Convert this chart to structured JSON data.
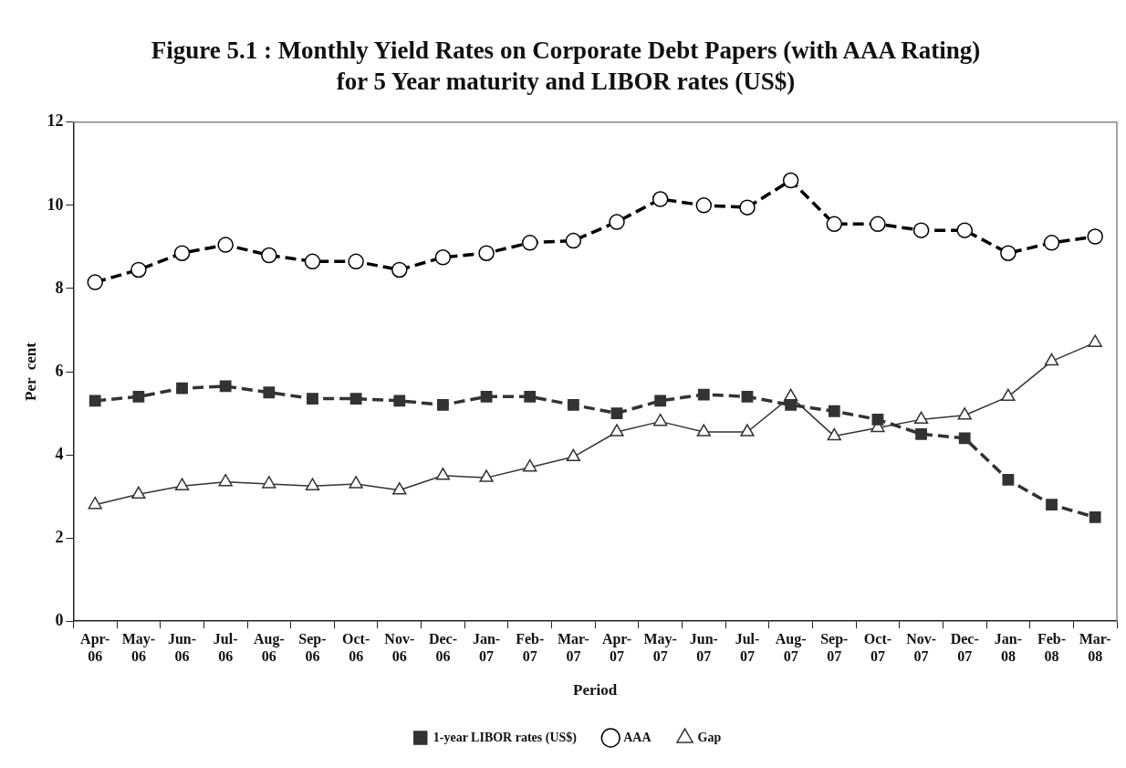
{
  "chart_data": {
    "type": "line",
    "title": "Figure 5.1 : Monthly Yield Rates on Corporate Debt Papers (with AAA Rating) for 5 Year maturity and LIBOR rates (US$)",
    "xlabel": "Period",
    "ylabel": "Per  cent",
    "categories": [
      "Apr-06",
      "May-06",
      "Jun-06",
      "Jul-06",
      "Aug-06",
      "Sep-06",
      "Oct-06",
      "Nov-06",
      "Dec-06",
      "Jan-07",
      "Feb-07",
      "Mar-07",
      "Apr-07",
      "May-07",
      "Jun-07",
      "Jul-07",
      "Aug-07",
      "Sep-07",
      "Oct-07",
      "Nov-07",
      "Dec-07",
      "Jan-08",
      "Feb-08",
      "Mar-08"
    ],
    "series": [
      {
        "name": "1-year LIBOR rates (US$)",
        "color": "#333333",
        "marker": "square",
        "line_style": "dashed",
        "values": [
          5.3,
          5.4,
          5.6,
          5.65,
          5.5,
          5.35,
          5.35,
          5.3,
          5.2,
          5.4,
          5.4,
          5.2,
          5.0,
          5.3,
          5.45,
          5.4,
          5.2,
          5.05,
          4.85,
          4.5,
          4.4,
          3.4,
          2.8,
          2.5
        ]
      },
      {
        "name": "AAA",
        "color": "#000000",
        "marker": "circle",
        "line_style": "dashed",
        "values": [
          8.15,
          8.45,
          8.85,
          9.05,
          8.8,
          8.65,
          8.65,
          8.45,
          8.75,
          8.85,
          9.1,
          9.15,
          9.6,
          10.15,
          10.0,
          9.95,
          10.6,
          9.55,
          9.55,
          9.4,
          9.4,
          8.85,
          9.1,
          9.25
        ]
      },
      {
        "name": "Gap",
        "color": "#333333",
        "marker": "triangle",
        "line_style": "solid",
        "values": [
          2.8,
          3.05,
          3.25,
          3.35,
          3.3,
          3.25,
          3.3,
          3.15,
          3.5,
          3.45,
          3.7,
          3.95,
          4.55,
          4.8,
          4.55,
          4.55,
          5.4,
          4.45,
          4.65,
          4.85,
          4.95,
          5.4,
          6.25,
          6.7
        ]
      }
    ],
    "ylim": [
      0,
      12
    ],
    "yticks": [
      0,
      2,
      4,
      6,
      8,
      10,
      12
    ],
    "grid": false,
    "legend": "bottom"
  }
}
